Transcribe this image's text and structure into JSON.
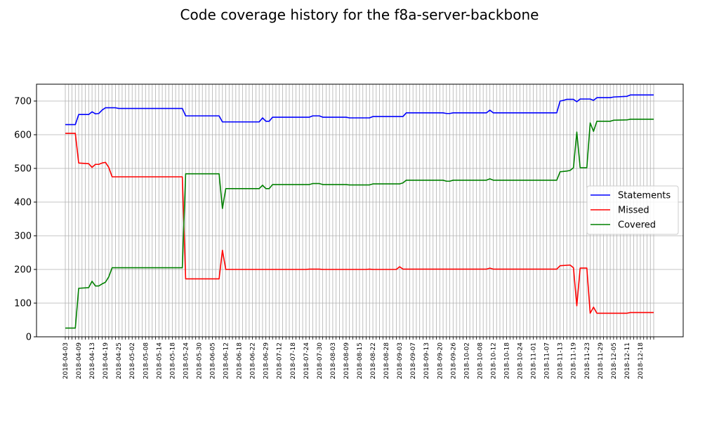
{
  "chart_data": {
    "type": "line",
    "title": "Code coverage history for the f8a-server-backbone",
    "xlabel": "",
    "ylabel": "",
    "ylim": [
      0,
      750
    ],
    "yticks": [
      0,
      100,
      200,
      300,
      400,
      500,
      600,
      700
    ],
    "grid": true,
    "legend_position": "center-right",
    "xticks": [
      "2018-04-03",
      "2018-04-09",
      "2018-04-13",
      "2018-04-19",
      "2018-04-25",
      "2018-05-02",
      "2018-05-08",
      "2018-05-14",
      "2018-05-18",
      "2018-05-24",
      "2018-05-30",
      "2018-06-05",
      "2018-06-12",
      "2018-06-18",
      "2018-06-22",
      "2018-06-29",
      "2018-07-12",
      "2018-07-18",
      "2018-07-24",
      "2018-07-30",
      "2018-08-03",
      "2018-08-09",
      "2018-08-15",
      "2018-08-22",
      "2018-08-28",
      "2018-09-03",
      "2018-09-07",
      "2018-09-13",
      "2018-09-20",
      "2018-09-26",
      "2018-10-02",
      "2018-10-08",
      "2018-10-12",
      "2018-10-18",
      "2018-10-24",
      "2018-11-01",
      "2018-11-07",
      "2018-11-13",
      "2018-11-19",
      "2018-11-23",
      "2018-11-29",
      "2018-12-05",
      "2018-12-11",
      "2018-12-18"
    ],
    "series": [
      {
        "name": "Statements",
        "color": "#0000ff",
        "points": [
          [
            0,
            630
          ],
          [
            3,
            630
          ],
          [
            4,
            660
          ],
          [
            7,
            660
          ],
          [
            8,
            668
          ],
          [
            9,
            662
          ],
          [
            10,
            663
          ],
          [
            11,
            673
          ],
          [
            12,
            680
          ],
          [
            15,
            680
          ],
          [
            16,
            678
          ],
          [
            35,
            678
          ],
          [
            36,
            656
          ],
          [
            46,
            656
          ],
          [
            47,
            638
          ],
          [
            58,
            638
          ],
          [
            59,
            650
          ],
          [
            60,
            640
          ],
          [
            61,
            640
          ],
          [
            62,
            652
          ],
          [
            73,
            652
          ],
          [
            74,
            656
          ],
          [
            76,
            656
          ],
          [
            77,
            652
          ],
          [
            84,
            652
          ],
          [
            85,
            650
          ],
          [
            91,
            650
          ],
          [
            92,
            654
          ],
          [
            101,
            654
          ],
          [
            102,
            665
          ],
          [
            113,
            665
          ],
          [
            114,
            663
          ],
          [
            115,
            663
          ],
          [
            116,
            665
          ],
          [
            126,
            665
          ],
          [
            127,
            673
          ],
          [
            128,
            665
          ],
          [
            147,
            665
          ],
          [
            148,
            700
          ],
          [
            149,
            702
          ],
          [
            150,
            705
          ],
          [
            152,
            705
          ],
          [
            153,
            698
          ],
          [
            154,
            706
          ],
          [
            157,
            706
          ],
          [
            158,
            702
          ],
          [
            159,
            710
          ],
          [
            163,
            710
          ],
          [
            164,
            712
          ],
          [
            168,
            714
          ],
          [
            169,
            718
          ],
          [
            176,
            718
          ]
        ]
      },
      {
        "name": "Missed",
        "color": "#ff0000",
        "points": [
          [
            0,
            604
          ],
          [
            3,
            604
          ],
          [
            4,
            516
          ],
          [
            7,
            514
          ],
          [
            8,
            503
          ],
          [
            9,
            512
          ],
          [
            10,
            512
          ],
          [
            11,
            516
          ],
          [
            12,
            518
          ],
          [
            13,
            503
          ],
          [
            14,
            475
          ],
          [
            35,
            475
          ],
          [
            36,
            172
          ],
          [
            46,
            172
          ],
          [
            47,
            257
          ],
          [
            48,
            200
          ],
          [
            58,
            200
          ],
          [
            59,
            200
          ],
          [
            72,
            200
          ],
          [
            73,
            201
          ],
          [
            76,
            201
          ],
          [
            77,
            200
          ],
          [
            90,
            200
          ],
          [
            91,
            201
          ],
          [
            92,
            200
          ],
          [
            99,
            200
          ],
          [
            100,
            208
          ],
          [
            101,
            201
          ],
          [
            126,
            201
          ],
          [
            127,
            204
          ],
          [
            128,
            201
          ],
          [
            147,
            201
          ],
          [
            148,
            211
          ],
          [
            151,
            213
          ],
          [
            152,
            205
          ],
          [
            153,
            92
          ],
          [
            154,
            204
          ],
          [
            156,
            204
          ],
          [
            157,
            70
          ],
          [
            158,
            88
          ],
          [
            159,
            70
          ],
          [
            168,
            70
          ],
          [
            169,
            72
          ],
          [
            176,
            72
          ]
        ]
      },
      {
        "name": "Covered",
        "color": "#008000",
        "points": [
          [
            0,
            26
          ],
          [
            3,
            26
          ],
          [
            4,
            144
          ],
          [
            7,
            146
          ],
          [
            8,
            165
          ],
          [
            9,
            151
          ],
          [
            10,
            151
          ],
          [
            11,
            157
          ],
          [
            12,
            162
          ],
          [
            13,
            178
          ],
          [
            14,
            205
          ],
          [
            35,
            205
          ],
          [
            36,
            484
          ],
          [
            46,
            484
          ],
          [
            47,
            381
          ],
          [
            48,
            440
          ],
          [
            58,
            440
          ],
          [
            59,
            450
          ],
          [
            60,
            440
          ],
          [
            61,
            440
          ],
          [
            62,
            452
          ],
          [
            73,
            452
          ],
          [
            74,
            455
          ],
          [
            76,
            455
          ],
          [
            77,
            452
          ],
          [
            84,
            452
          ],
          [
            85,
            451
          ],
          [
            91,
            451
          ],
          [
            92,
            454
          ],
          [
            100,
            454
          ],
          [
            101,
            457
          ],
          [
            102,
            465
          ],
          [
            113,
            465
          ],
          [
            114,
            462
          ],
          [
            115,
            462
          ],
          [
            116,
            465
          ],
          [
            126,
            465
          ],
          [
            127,
            469
          ],
          [
            128,
            465
          ],
          [
            147,
            465
          ],
          [
            148,
            490
          ],
          [
            150,
            492
          ],
          [
            151,
            494
          ],
          [
            152,
            502
          ],
          [
            153,
            608
          ],
          [
            154,
            502
          ],
          [
            156,
            502
          ],
          [
            157,
            635
          ],
          [
            158,
            610
          ],
          [
            159,
            640
          ],
          [
            163,
            640
          ],
          [
            164,
            643
          ],
          [
            168,
            644
          ],
          [
            169,
            646
          ],
          [
            176,
            646
          ]
        ]
      }
    ]
  }
}
